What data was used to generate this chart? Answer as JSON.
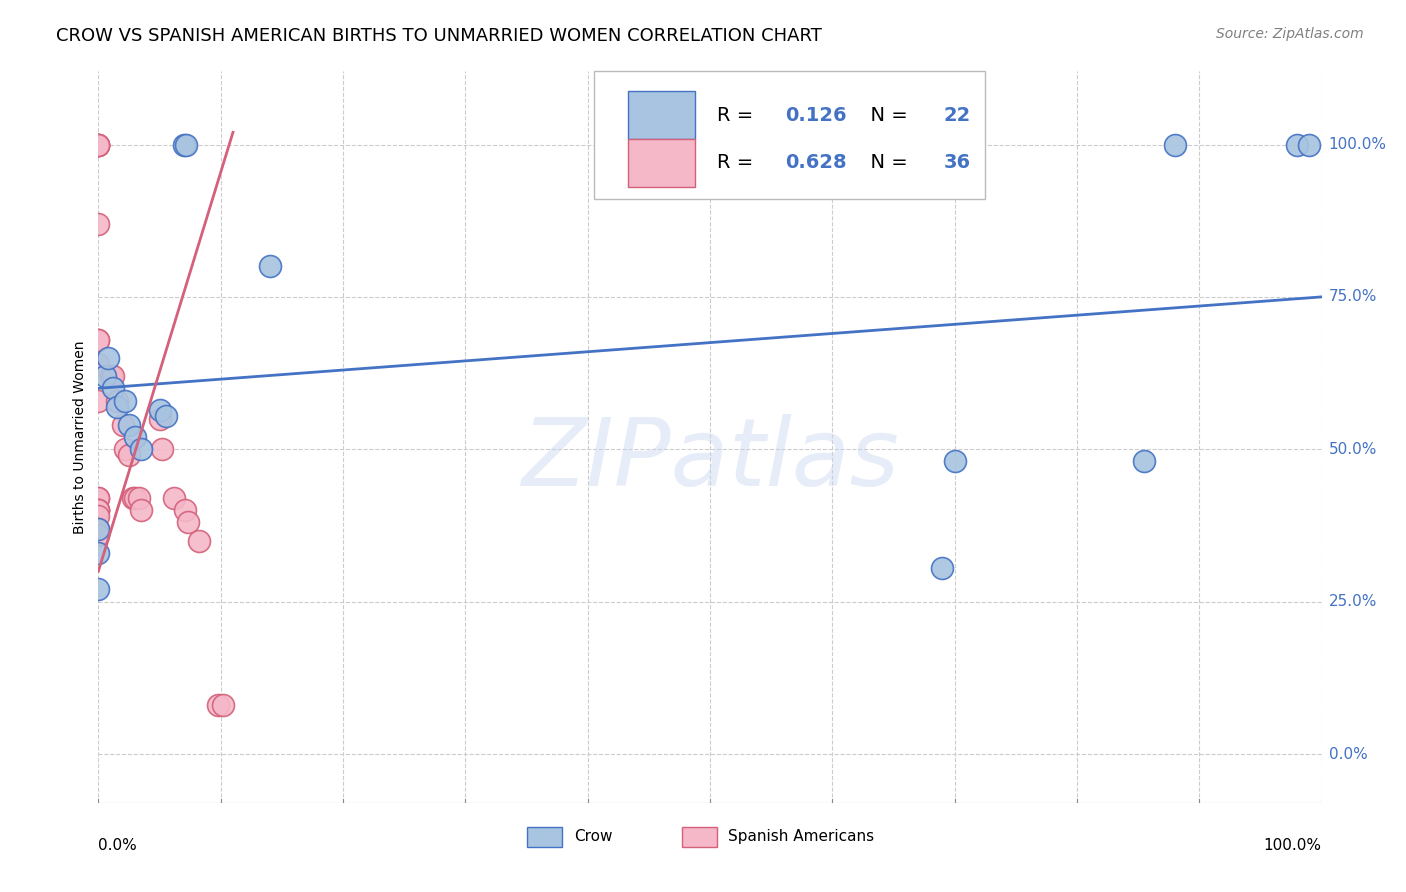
{
  "title": "CROW VS SPANISH AMERICAN BIRTHS TO UNMARRIED WOMEN CORRELATION CHART",
  "source": "Source: ZipAtlas.com",
  "ylabel": "Births to Unmarried Women",
  "xlim": [
    0.0,
    1.0
  ],
  "ylim": [
    -0.08,
    1.12
  ],
  "yticks": [
    0.0,
    0.25,
    0.5,
    0.75,
    1.0
  ],
  "ytick_labels": [
    "0.0%",
    "25.0%",
    "50.0%",
    "75.0%",
    "100.0%"
  ],
  "watermark": "ZIPatlas",
  "crow_color": "#a8c4e0",
  "crow_edge_color": "#4472c4",
  "spanish_color": "#f4b8c8",
  "spanish_edge_color": "#d4607a",
  "crow_R": 0.126,
  "crow_N": 22,
  "spanish_R": 0.628,
  "spanish_N": 36,
  "crow_scatter_x": [
    0.0,
    0.0,
    0.0,
    0.005,
    0.008,
    0.012,
    0.015,
    0.022,
    0.025,
    0.03,
    0.035,
    0.05,
    0.055,
    0.07,
    0.072,
    0.14,
    0.69,
    0.7,
    0.855,
    0.88,
    0.98,
    0.99
  ],
  "crow_scatter_y": [
    0.33,
    0.37,
    0.27,
    0.62,
    0.65,
    0.6,
    0.57,
    0.58,
    0.54,
    0.52,
    0.5,
    0.565,
    0.555,
    1.0,
    1.0,
    0.8,
    0.305,
    0.48,
    0.48,
    1.0,
    1.0,
    1.0
  ],
  "spanish_scatter_x": [
    0.0,
    0.0,
    0.0,
    0.0,
    0.0,
    0.0,
    0.0,
    0.0,
    0.0,
    0.0,
    0.0,
    0.0,
    0.0,
    0.0,
    0.0,
    0.0,
    0.0,
    0.0,
    0.01,
    0.012,
    0.015,
    0.02,
    0.022,
    0.025,
    0.028,
    0.03,
    0.033,
    0.035,
    0.05,
    0.052,
    0.062,
    0.071,
    0.073,
    0.082,
    0.098,
    0.102
  ],
  "spanish_scatter_y": [
    1.0,
    1.0,
    1.0,
    1.0,
    1.0,
    0.87,
    0.68,
    0.68,
    0.64,
    0.58,
    0.42,
    0.42,
    0.4,
    0.4,
    0.4,
    0.39,
    0.37,
    0.36,
    0.62,
    0.62,
    0.58,
    0.54,
    0.5,
    0.49,
    0.42,
    0.42,
    0.42,
    0.4,
    0.55,
    0.5,
    0.42,
    0.4,
    0.38,
    0.35,
    0.08,
    0.08
  ],
  "crow_trend_x": [
    0.0,
    1.0
  ],
  "crow_trend_y": [
    0.6,
    0.75
  ],
  "spanish_trend_x": [
    0.0,
    0.11
  ],
  "spanish_trend_y": [
    0.3,
    1.02
  ],
  "trend_blue_color": "#4472c4",
  "trend_pink_color": "#d4607a",
  "background_color": "#ffffff",
  "grid_color": "#cccccc",
  "title_fontsize": 13,
  "axis_label_fontsize": 10,
  "tick_fontsize": 11,
  "source_fontsize": 10,
  "legend_color": "#4472c4"
}
